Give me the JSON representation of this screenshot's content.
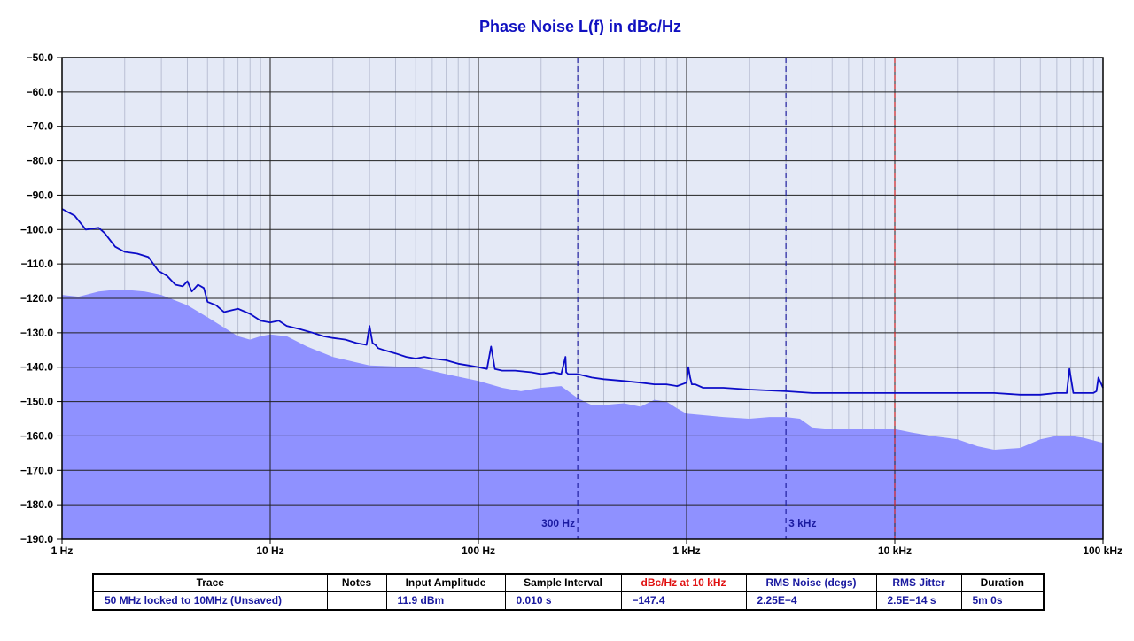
{
  "chart_data": {
    "type": "area",
    "title": "Phase Noise L(f) in dBc/Hz",
    "xlabel": "",
    "ylabel": "",
    "xscale": "log",
    "xlim": [
      1,
      100000
    ],
    "ylim": [
      -190,
      -50
    ],
    "grid": true,
    "x_ticks": [
      {
        "value": 1,
        "label": "1 Hz"
      },
      {
        "value": 10,
        "label": "10 Hz"
      },
      {
        "value": 100,
        "label": "100 Hz"
      },
      {
        "value": 1000,
        "label": "1 kHz"
      },
      {
        "value": 10000,
        "label": "10 kHz"
      },
      {
        "value": 100000,
        "label": "100 kHz"
      }
    ],
    "y_ticks": [
      {
        "value": -50,
        "label": "−50.0"
      },
      {
        "value": -60,
        "label": "−60.0"
      },
      {
        "value": -70,
        "label": "−70.0"
      },
      {
        "value": -80,
        "label": "−80.0"
      },
      {
        "value": -90,
        "label": "−90.0"
      },
      {
        "value": -100,
        "label": "−100.0"
      },
      {
        "value": -110,
        "label": "−110.0"
      },
      {
        "value": -120,
        "label": "−120.0"
      },
      {
        "value": -130,
        "label": "−130.0"
      },
      {
        "value": -140,
        "label": "−140.0"
      },
      {
        "value": -150,
        "label": "−150.0"
      },
      {
        "value": -160,
        "label": "−160.0"
      },
      {
        "value": -170,
        "label": "−170.0"
      },
      {
        "value": -180,
        "label": "−180.0"
      },
      {
        "value": -190,
        "label": "−190.0"
      }
    ],
    "markers": [
      {
        "x": 300,
        "label": "300 Hz",
        "color": "#2020a0"
      },
      {
        "x": 3000,
        "label": "3 kHz",
        "color": "#2020a0"
      },
      {
        "x": 10000,
        "label": "",
        "color": "#d02020"
      }
    ],
    "series": [
      {
        "style": "line",
        "color": "#0c0cc8",
        "x": [
          1,
          1.15,
          1.3,
          1.5,
          1.6,
          1.8,
          2,
          2.3,
          2.6,
          2.9,
          3.2,
          3.5,
          3.8,
          4,
          4.2,
          4.5,
          4.8,
          5,
          5.5,
          6,
          7,
          8,
          9,
          10,
          11,
          12,
          14,
          16,
          18,
          20,
          23,
          26,
          29,
          30,
          31,
          32,
          33,
          35,
          40,
          45,
          50,
          55,
          60,
          70,
          80,
          90,
          100,
          110,
          115,
          120,
          130,
          150,
          180,
          200,
          230,
          250,
          262,
          264,
          270,
          300,
          350,
          400,
          500,
          600,
          700,
          800,
          900,
          1000,
          1020,
          1040,
          1060,
          1100,
          1200,
          1500,
          2000,
          3000,
          4000,
          5000,
          7000,
          10000,
          15000,
          20000,
          30000,
          40000,
          50000,
          60000,
          65000,
          67000,
          69000,
          72000,
          80000,
          90000,
          93000,
          95000,
          100000
        ],
        "values": [
          -94,
          -96,
          -100,
          -99.5,
          -101,
          -105,
          -106.5,
          -107,
          -108,
          -112,
          -113.5,
          -116,
          -116.5,
          -115,
          -118,
          -116,
          -117,
          -121,
          -122,
          -124,
          -123,
          -124.5,
          -126.5,
          -127,
          -126.5,
          -128,
          -129,
          -130,
          -131,
          -131.5,
          -132,
          -133,
          -133.5,
          -128,
          -133,
          -133.5,
          -134.5,
          -135,
          -136,
          -137,
          -137.5,
          -137,
          -137.5,
          -138,
          -139,
          -139.5,
          -140,
          -140.5,
          -134,
          -140.5,
          -141,
          -141,
          -141.5,
          -142,
          -141.5,
          -142,
          -137,
          -141.5,
          -142,
          -142,
          -143,
          -143.5,
          -144,
          -144.5,
          -145,
          -145,
          -145.5,
          -144.5,
          -140,
          -143,
          -145,
          -145,
          -146,
          -146,
          -146.5,
          -147,
          -147.5,
          -147.5,
          -147.5,
          -147.5,
          -147.5,
          -147.5,
          -147.5,
          -148,
          -148,
          -147.5,
          -147.5,
          -147.5,
          -140.5,
          -147.5,
          -147.5,
          -147.5,
          -147,
          -143,
          -146
        ]
      },
      {
        "style": "area",
        "color": "#8f91ff",
        "x": [
          1,
          1.2,
          1.5,
          1.8,
          2,
          2.5,
          3,
          4,
          5,
          6,
          7,
          8,
          9,
          10,
          12,
          15,
          20,
          30,
          50,
          70,
          100,
          130,
          160,
          200,
          250,
          300,
          350,
          400,
          500,
          600,
          700,
          800,
          900,
          1000,
          1500,
          2000,
          2500,
          3000,
          3500,
          4000,
          5000,
          7000,
          10000,
          12000,
          15000,
          20000,
          25000,
          30000,
          40000,
          50000,
          60000,
          70000,
          80000,
          100000
        ],
        "values": [
          -119,
          -119.5,
          -118,
          -117.5,
          -117.5,
          -118,
          -119,
          -122,
          -125.5,
          -128.5,
          -131,
          -132,
          -131,
          -130.5,
          -131,
          -134,
          -137,
          -139.5,
          -140,
          -142,
          -144,
          -146,
          -147,
          -146,
          -145.5,
          -149,
          -151,
          -151,
          -150.5,
          -151.5,
          -149.5,
          -150,
          -152,
          -153.5,
          -154.5,
          -155,
          -154.5,
          -154.5,
          -155,
          -157.5,
          -158,
          -158,
          -158,
          -159,
          -160,
          -161,
          -163,
          -164,
          -163.5,
          -161,
          -160,
          -160,
          -160.5,
          -162
        ]
      }
    ]
  },
  "table": {
    "headers": {
      "trace": "Trace",
      "notes": "Notes",
      "input_amplitude": "Input Amplitude",
      "sample_interval": "Sample Interval",
      "dbc_at_10k": "dBc/Hz at 10 kHz",
      "rms_noise": "RMS Noise (degs)",
      "rms_jitter": "RMS Jitter",
      "duration": "Duration"
    },
    "header_colors": {
      "default": "#000000",
      "dbc_at_10k": "#e01010",
      "rms_noise": "#1a1aa0",
      "rms_jitter": "#1a1aa0"
    },
    "row": {
      "trace": "50 MHz locked to 10MHz (Unsaved)",
      "notes": "",
      "input_amplitude": "11.9 dBm",
      "sample_interval": "0.010 s",
      "dbc_at_10k": "−147.4",
      "rms_noise": "2.25E−4",
      "rms_jitter": "2.5E−14 s",
      "duration": "5m 0s"
    }
  }
}
